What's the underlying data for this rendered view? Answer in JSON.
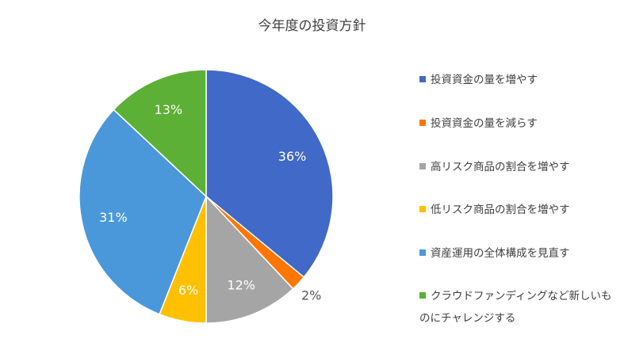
{
  "chart_data": {
    "type": "pie",
    "title": "今年度の投資方針",
    "categories": [
      "投資資金の量を増やす",
      "投資資金の量を減らす",
      "高リスク商品の割合を増やす",
      "低リスク商品の割合を増やす",
      "資産運用の全体構成を見直す",
      "クラウドファンディングなど新しいものにチャレンジする"
    ],
    "values": [
      36,
      2,
      12,
      6,
      31,
      13
    ],
    "data_labels": [
      "36%",
      "2%",
      "12%",
      "6%",
      "31%",
      "13%"
    ],
    "colors": [
      "#4169C8",
      "#FF7700",
      "#A5A5A5",
      "#FFC000",
      "#4A98DA",
      "#5BB035"
    ],
    "legend_position": "right",
    "start_angle": "12 o'clock, clockwise"
  }
}
